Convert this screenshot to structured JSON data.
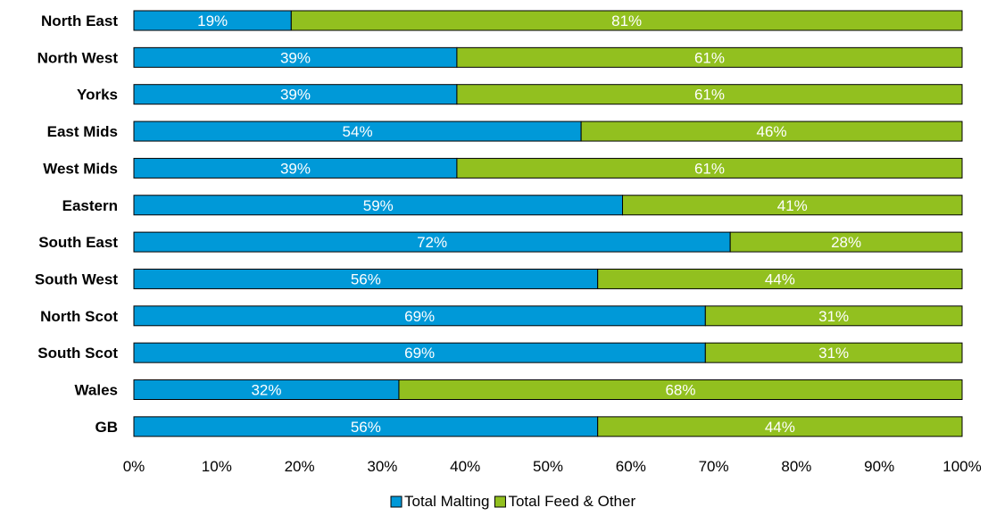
{
  "chart_data": {
    "type": "bar",
    "orientation": "horizontal",
    "stacked": true,
    "categories": [
      "North East",
      "North West",
      "Yorks",
      "East Mids",
      "West Mids",
      "Eastern",
      "South East",
      "South West",
      "North Scot",
      "South Scot",
      "Wales",
      "GB"
    ],
    "series": [
      {
        "name": "Total Malting",
        "color": "#0099d8",
        "values": [
          19,
          39,
          39,
          54,
          39,
          59,
          72,
          56,
          69,
          69,
          32,
          56
        ]
      },
      {
        "name": "Total Feed & Other",
        "color": "#92c01f",
        "values": [
          81,
          61,
          61,
          46,
          61,
          41,
          28,
          44,
          31,
          31,
          68,
          44
        ]
      }
    ],
    "data_labels": [
      [
        "19%",
        "39%",
        "39%",
        "54%",
        "39%",
        "59%",
        "72%",
        "56%",
        "69%",
        "69%",
        "32%",
        "56%"
      ],
      [
        "81%",
        "61%",
        "61%",
        "46%",
        "61%",
        "41%",
        "28%",
        "44%",
        "31%",
        "31%",
        "68%",
        "44%"
      ]
    ],
    "xlim": [
      0,
      100
    ],
    "xticks": [
      "0%",
      "10%",
      "20%",
      "30%",
      "40%",
      "50%",
      "60%",
      "70%",
      "80%",
      "90%",
      "100%"
    ],
    "grid": false,
    "legend_position": "bottom",
    "title": "",
    "xlabel": "",
    "ylabel": ""
  }
}
